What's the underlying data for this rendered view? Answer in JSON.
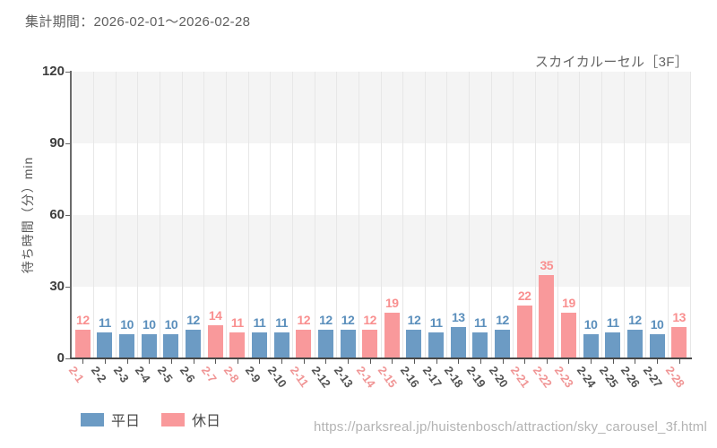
{
  "header": {
    "period_label": "集計期間：2026-02-01～2026-02-28"
  },
  "chart": {
    "title": "スカイカルーセル［3F］",
    "y_axis_title": "待ち時間（分）min"
  },
  "legend": {
    "items": [
      {
        "label": "平日",
        "color": "#6c9bc4"
      },
      {
        "label": "休日",
        "color": "#f9999b"
      }
    ]
  },
  "footer": {
    "url": "https://parksreal.jp/huistenbosch/attraction/sky_carousel_3f.html"
  },
  "colors": {
    "weekday_bar": "#6c9bc4",
    "holiday_bar": "#f9999b",
    "weekday_value_label": "#5b8fbc",
    "holiday_value_label": "#f98f8f",
    "weekday_axis_label": "#525252",
    "holiday_axis_label": "#f09595",
    "band_gray": "#f4f4f4",
    "band_white": "#ffffff",
    "gridline": "#e7e7e7"
  },
  "chart_data": {
    "type": "bar",
    "title": "スカイカルーセル［3F］",
    "xlabel": "",
    "ylabel": "待ち時間（分）min",
    "ylim": [
      0,
      120
    ],
    "y_ticks": [
      0,
      30,
      60,
      90,
      120
    ],
    "grid": "horizontal-bands with vertical category gridlines",
    "legend_position": "bottom-left",
    "value_labels": true,
    "categories": [
      "2-1",
      "2-2",
      "2-3",
      "2-4",
      "2-5",
      "2-6",
      "2-7",
      "2-8",
      "2-9",
      "2-10",
      "2-11",
      "2-12",
      "2-13",
      "2-14",
      "2-15",
      "2-16",
      "2-17",
      "2-18",
      "2-19",
      "2-20",
      "2-21",
      "2-22",
      "2-23",
      "2-24",
      "2-25",
      "2-26",
      "2-27",
      "2-28"
    ],
    "values": [
      12,
      11,
      10,
      10,
      10,
      12,
      14,
      11,
      11,
      11,
      12,
      12,
      12,
      12,
      19,
      12,
      11,
      13,
      11,
      12,
      22,
      35,
      19,
      10,
      11,
      12,
      10,
      13
    ],
    "day_types": [
      "holiday",
      "weekday",
      "weekday",
      "weekday",
      "weekday",
      "weekday",
      "holiday",
      "holiday",
      "weekday",
      "weekday",
      "holiday",
      "weekday",
      "weekday",
      "holiday",
      "holiday",
      "weekday",
      "weekday",
      "weekday",
      "weekday",
      "weekday",
      "holiday",
      "holiday",
      "holiday",
      "weekday",
      "weekday",
      "weekday",
      "weekday",
      "holiday"
    ],
    "series_legend": [
      "平日",
      "休日"
    ]
  }
}
